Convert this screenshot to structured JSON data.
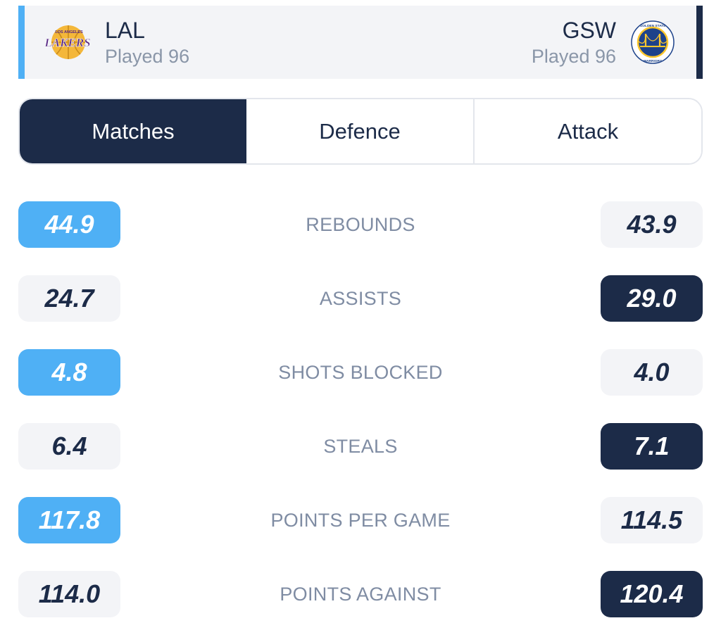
{
  "header": {
    "home": {
      "abbr": "LAL",
      "played": "Played 96",
      "logo_icon": "lakers-logo-icon",
      "logo_text_top": "LOS ANGELES",
      "logo_text": "LAKERS"
    },
    "away": {
      "abbr": "GSW",
      "played": "Played 96",
      "logo_icon": "warriors-logo-icon",
      "logo_text_top": "GOLDEN STATE",
      "logo_text_bottom": "WARRIORS"
    },
    "colors": {
      "home_accent": "#4fb0f5",
      "away_accent": "#1c2b48"
    }
  },
  "tabs": [
    {
      "label": "Matches",
      "active": true
    },
    {
      "label": "Defence",
      "active": false
    },
    {
      "label": "Attack",
      "active": false
    }
  ],
  "stats": [
    {
      "label": "REBOUNDS",
      "home": "44.9",
      "away": "43.9",
      "leader": "home"
    },
    {
      "label": "ASSISTS",
      "home": "24.7",
      "away": "29.0",
      "leader": "away"
    },
    {
      "label": "SHOTS BLOCKED",
      "home": "4.8",
      "away": "4.0",
      "leader": "home"
    },
    {
      "label": "STEALS",
      "home": "6.4",
      "away": "7.1",
      "leader": "away"
    },
    {
      "label": "POINTS PER GAME",
      "home": "117.8",
      "away": "114.5",
      "leader": "home"
    },
    {
      "label": "POINTS AGAINST",
      "home": "114.0",
      "away": "120.4",
      "leader": "away"
    }
  ]
}
